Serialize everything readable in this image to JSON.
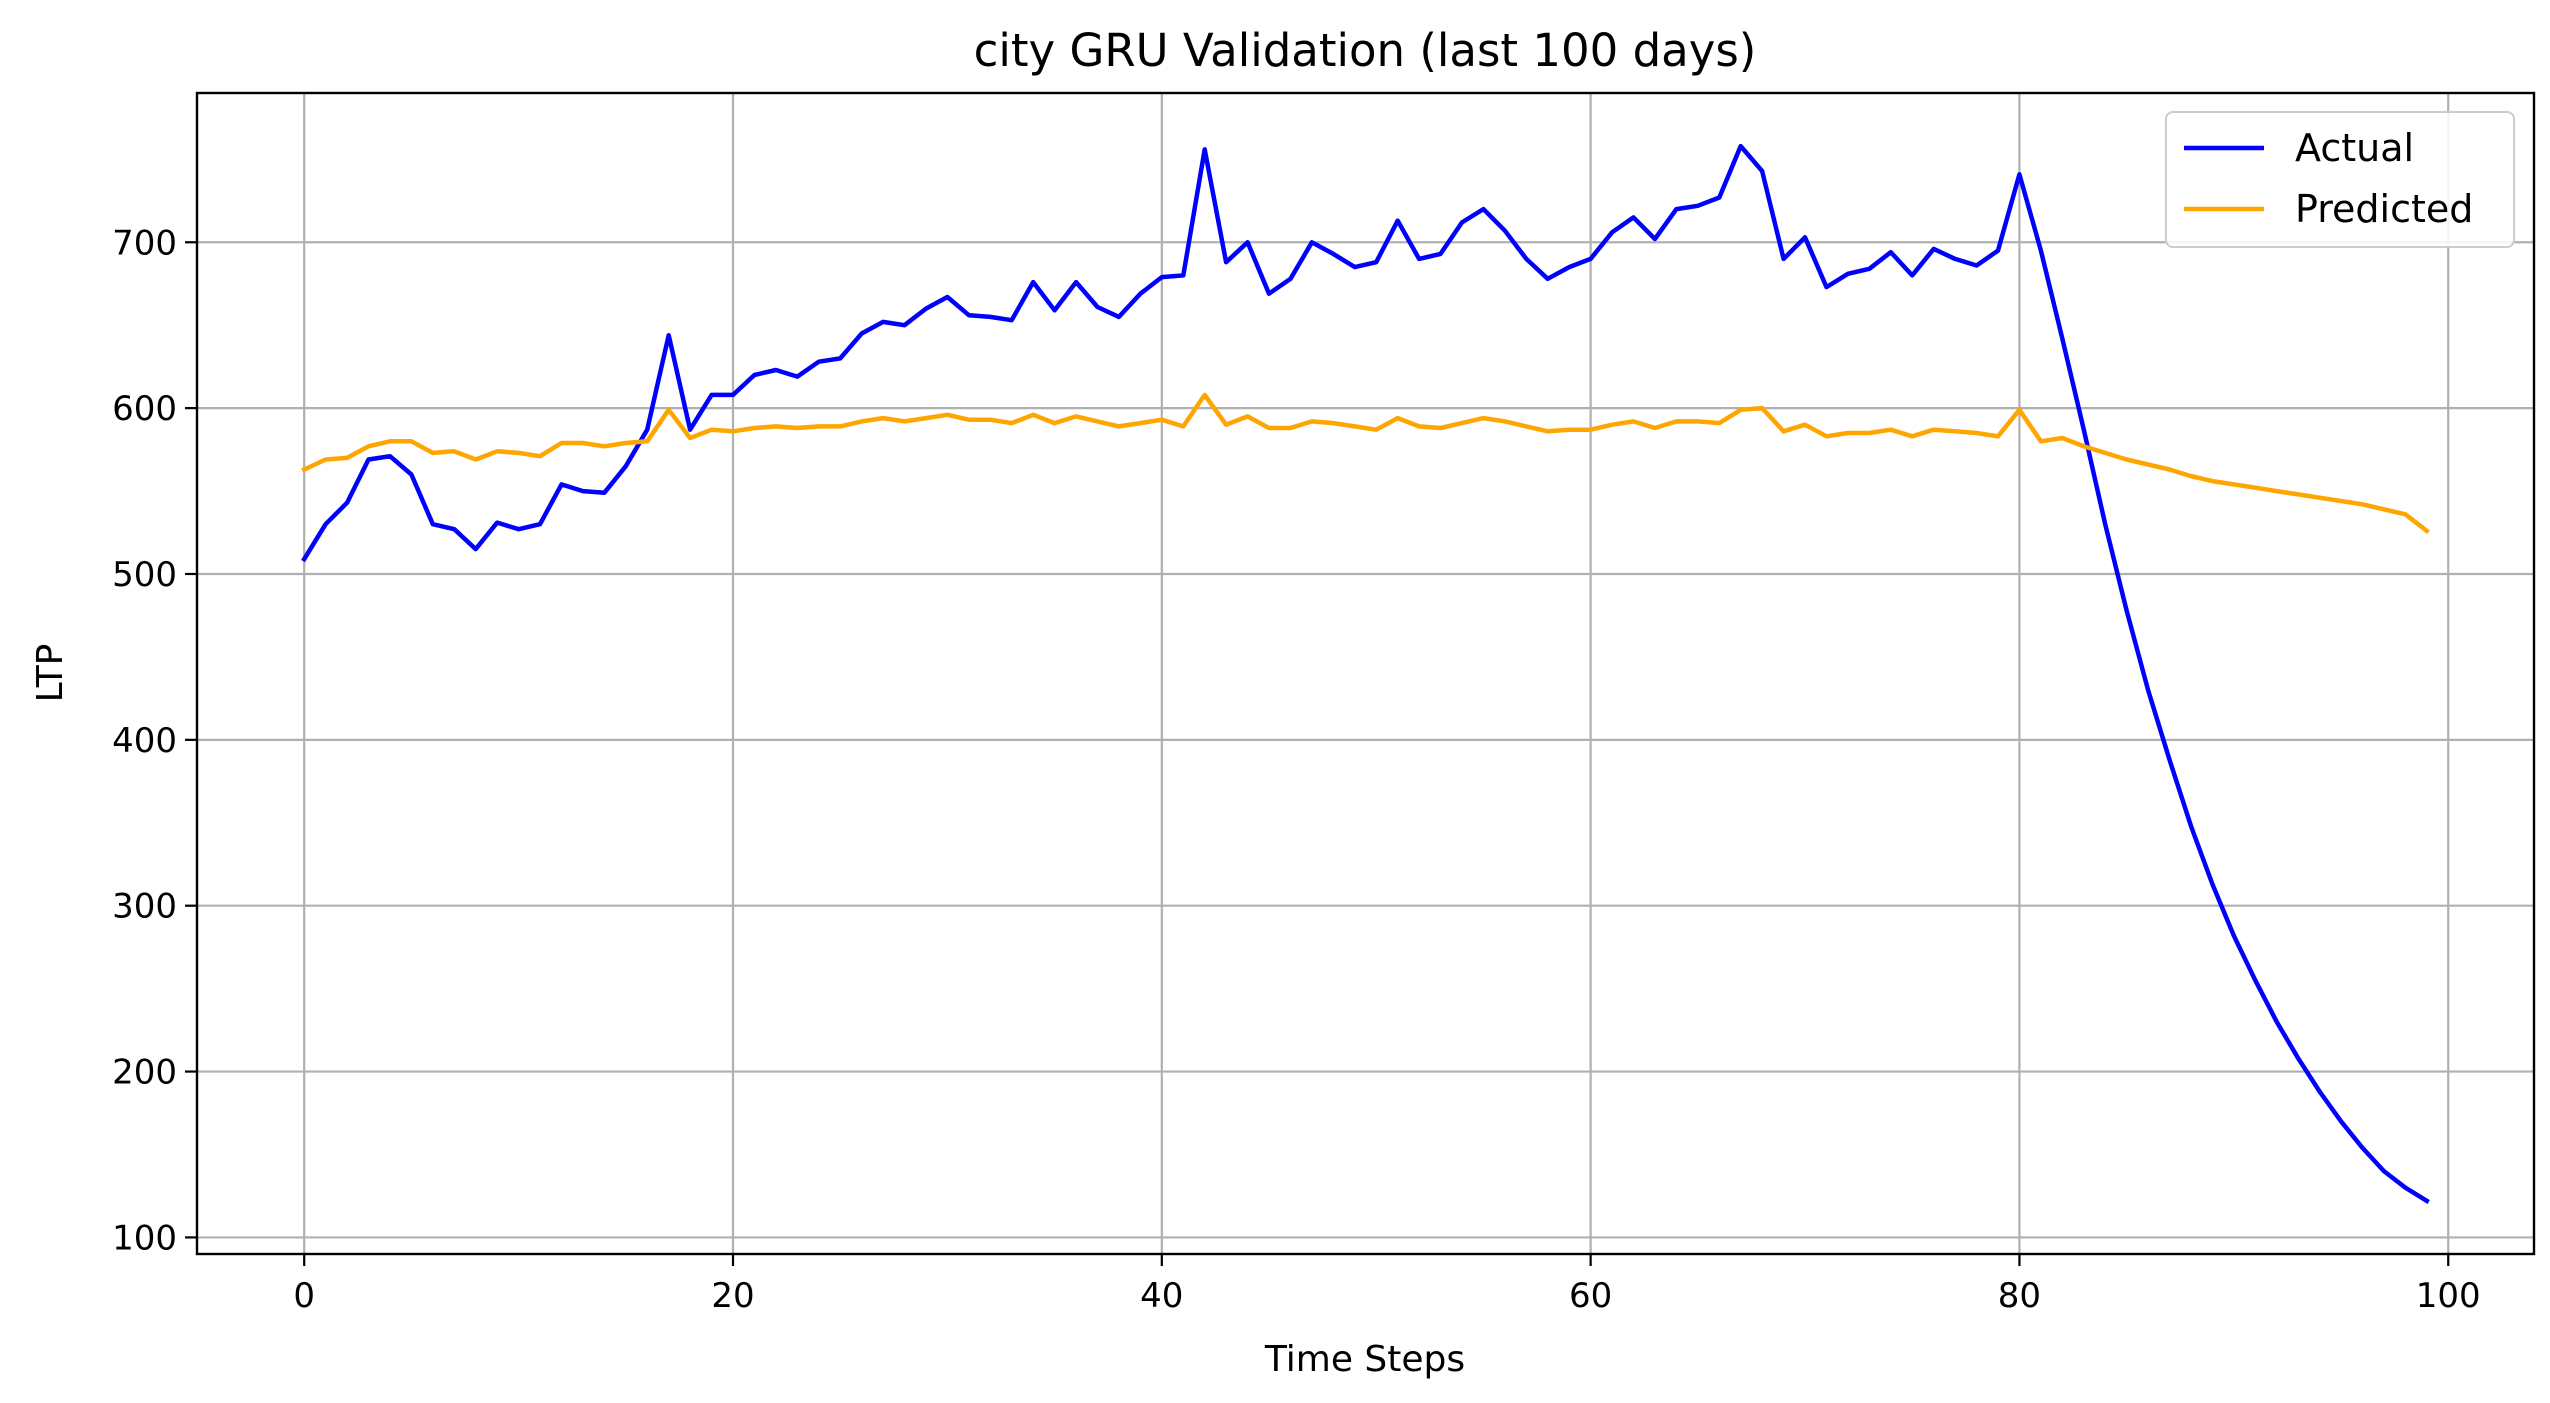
{
  "chart_data": {
    "type": "line",
    "title": "city GRU Validation (last 100 days)",
    "xlabel": "Time Steps",
    "ylabel": "LTP",
    "xlim": [
      -5,
      104
    ],
    "ylim": [
      90,
      790
    ],
    "xticks": [
      0,
      20,
      40,
      60,
      80,
      100
    ],
    "yticks": [
      100,
      200,
      300,
      400,
      500,
      600,
      700
    ],
    "grid": true,
    "legend_position": "top-right",
    "series": [
      {
        "name": "Actual",
        "color": "#0000ff",
        "values": [
          509,
          530,
          543,
          569,
          571,
          560,
          530,
          527,
          515,
          531,
          527,
          530,
          554,
          550,
          549,
          565,
          587,
          644,
          587,
          608,
          608,
          620,
          623,
          619,
          628,
          630,
          645,
          652,
          650,
          660,
          667,
          656,
          655,
          653,
          676,
          659,
          676,
          661,
          655,
          669,
          679,
          680,
          756,
          688,
          700,
          669,
          678,
          700,
          693,
          685,
          688,
          713,
          690,
          693,
          712,
          720,
          707,
          690,
          678,
          685,
          690,
          706,
          715,
          702,
          720,
          722,
          727,
          758,
          743,
          690,
          703,
          673,
          681,
          684,
          694,
          680,
          696,
          690,
          686,
          695,
          741,
          695,
          642,
          587,
          530,
          478,
          430,
          388,
          348,
          313,
          282,
          255,
          230,
          208,
          188,
          170,
          154,
          140,
          130,
          122
        ]
      },
      {
        "name": "Predicted",
        "color": "#ffa500",
        "values": [
          563,
          569,
          570,
          577,
          580,
          580,
          573,
          574,
          569,
          574,
          573,
          571,
          579,
          579,
          577,
          579,
          580,
          599,
          582,
          587,
          586,
          588,
          589,
          588,
          589,
          589,
          592,
          594,
          592,
          594,
          596,
          593,
          593,
          591,
          596,
          591,
          595,
          592,
          589,
          591,
          593,
          589,
          608,
          590,
          595,
          588,
          588,
          592,
          591,
          589,
          587,
          594,
          589,
          588,
          591,
          594,
          592,
          589,
          586,
          587,
          587,
          590,
          592,
          588,
          592,
          592,
          591,
          599,
          600,
          586,
          590,
          583,
          585,
          585,
          587,
          583,
          587,
          586,
          585,
          583,
          599,
          580,
          582,
          577,
          573,
          569,
          566,
          563,
          559,
          556,
          554,
          552,
          550,
          548,
          546,
          544,
          542,
          539,
          536,
          526
        ]
      }
    ]
  }
}
